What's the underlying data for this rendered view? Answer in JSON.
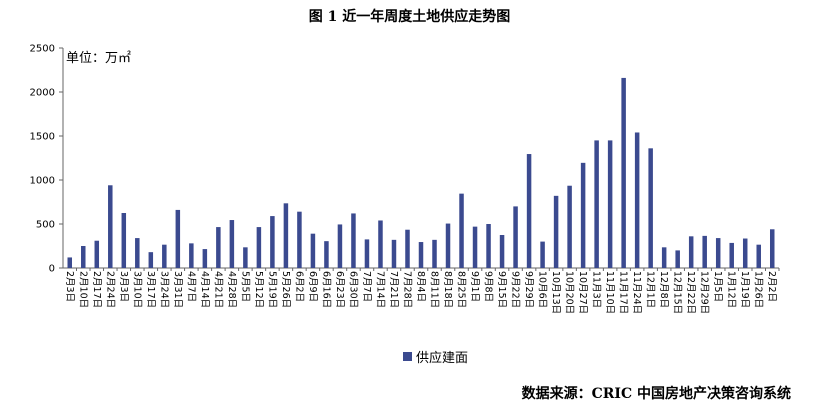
{
  "chart_data": {
    "type": "bar",
    "title": "图 1 近一年周度土地供应走势图",
    "unit": "单位：万㎡",
    "legend": "供应建面",
    "source": "数据来源：CRIC 中国房地产决策咨询系统",
    "ylim": [
      0,
      2500
    ],
    "yticks": [
      0,
      500,
      1000,
      1500,
      2000,
      2500
    ],
    "categories": [
      "2月3日",
      "2月10日",
      "2月17日",
      "2月24日",
      "3月3日",
      "3月10日",
      "3月17日",
      "3月24日",
      "3月31日",
      "4月7日",
      "4月14日",
      "4月21日",
      "4月28日",
      "5月5日",
      "5月12日",
      "5月19日",
      "5月26日",
      "6月2日",
      "6月9日",
      "6月16日",
      "6月23日",
      "6月30日",
      "7月7日",
      "7月14日",
      "7月21日",
      "7月28日",
      "8月4日",
      "8月11日",
      "8月18日",
      "8月25日",
      "9月1日",
      "9月8日",
      "9月15日",
      "9月22日",
      "9月29日",
      "10月6日",
      "10月13日",
      "10月20日",
      "10月27日",
      "11月3日",
      "11月10日",
      "11月17日",
      "11月24日",
      "12月1日",
      "12月8日",
      "12月15日",
      "12月22日",
      "12月29日",
      "1月5日",
      "1月12日",
      "1月19日",
      "1月26日",
      "2月2日"
    ],
    "series": [
      {
        "name": "供应建面",
        "color": "#3b4a8f",
        "values": [
          120,
          250,
          310,
          940,
          625,
          340,
          180,
          265,
          660,
          280,
          215,
          465,
          545,
          235,
          465,
          590,
          735,
          640,
          390,
          305,
          495,
          620,
          325,
          540,
          320,
          435,
          295,
          320,
          505,
          845,
          470,
          500,
          375,
          700,
          1295,
          300,
          820,
          935,
          1195,
          1450,
          1450,
          2160,
          1540,
          1360,
          235,
          200,
          360,
          365,
          340,
          285,
          335,
          265,
          440
        ]
      }
    ],
    "grid": false,
    "legend_position": "bottom-center"
  }
}
